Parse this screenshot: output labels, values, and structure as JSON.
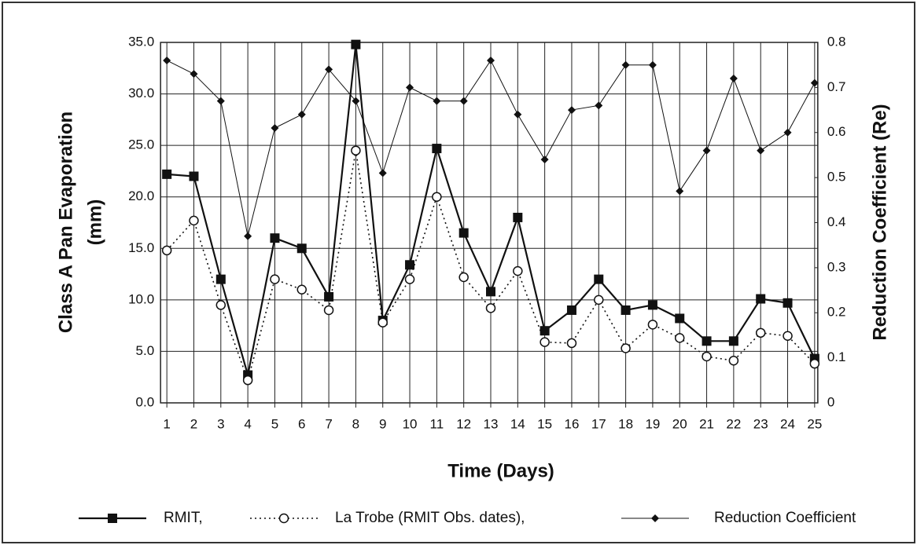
{
  "chart_data": {
    "type": "line",
    "y_label": [
      "Class A Pan Evaporation",
      "(mm)"
    ],
    "y2_label": "Reduction Coefficient (Re)",
    "x_label": "Time (Days)",
    "categories": [
      1,
      2,
      3,
      4,
      5,
      6,
      7,
      8,
      9,
      10,
      11,
      12,
      13,
      14,
      15,
      16,
      17,
      18,
      19,
      20,
      21,
      22,
      23,
      24,
      25
    ],
    "ylim": [
      0,
      35
    ],
    "yticks": [
      {
        "value": 0,
        "label": "0.0"
      },
      {
        "value": 5,
        "label": "5.0"
      },
      {
        "value": 10,
        "label": "10.0"
      },
      {
        "value": 15,
        "label": "15.0"
      },
      {
        "value": 20,
        "label": "20.0"
      },
      {
        "value": 25,
        "label": "25.0"
      },
      {
        "value": 30,
        "label": "30.0"
      },
      {
        "value": 35,
        "label": "35.0"
      }
    ],
    "y2lim": [
      0,
      0.8
    ],
    "y2ticks": [
      0,
      0.1,
      0.2,
      0.3,
      0.4,
      0.5,
      0.6,
      0.7,
      0.8
    ],
    "grid": true,
    "legend": "bottom",
    "series": [
      {
        "name": "RMIT,",
        "color": "#111111",
        "marker": "square",
        "dash": "solid",
        "values": [
          22.2,
          22.0,
          12.0,
          2.7,
          16.0,
          15.0,
          10.3,
          34.8,
          8.0,
          13.4,
          24.7,
          16.5,
          10.8,
          18.0,
          7.0,
          9.0,
          12.0,
          9.0,
          9.5,
          8.2,
          6.0,
          6.0,
          10.1,
          9.7,
          4.3
        ]
      },
      {
        "name": "La Trobe (RMIT Obs. dates),",
        "color": "#111111",
        "marker": "circle",
        "dash": "dotted",
        "values": [
          14.8,
          17.7,
          9.5,
          2.2,
          12.0,
          11.0,
          9.0,
          24.5,
          7.8,
          12.0,
          20.0,
          12.2,
          9.2,
          12.8,
          5.9,
          5.8,
          10.0,
          5.3,
          7.6,
          6.3,
          4.5,
          4.1,
          6.8,
          6.5,
          3.8
        ]
      },
      {
        "name": "Reduction Coefficient",
        "color": "#111111",
        "marker": "diamond",
        "dash": "thin",
        "axis": "y2",
        "values": [
          0.76,
          0.73,
          0.67,
          0.37,
          0.61,
          0.64,
          0.74,
          0.67,
          0.51,
          0.7,
          0.67,
          0.67,
          0.76,
          0.64,
          0.54,
          0.65,
          0.66,
          0.75,
          0.75,
          0.47,
          0.56,
          0.72,
          0.56,
          0.6,
          0.71
        ]
      }
    ]
  }
}
